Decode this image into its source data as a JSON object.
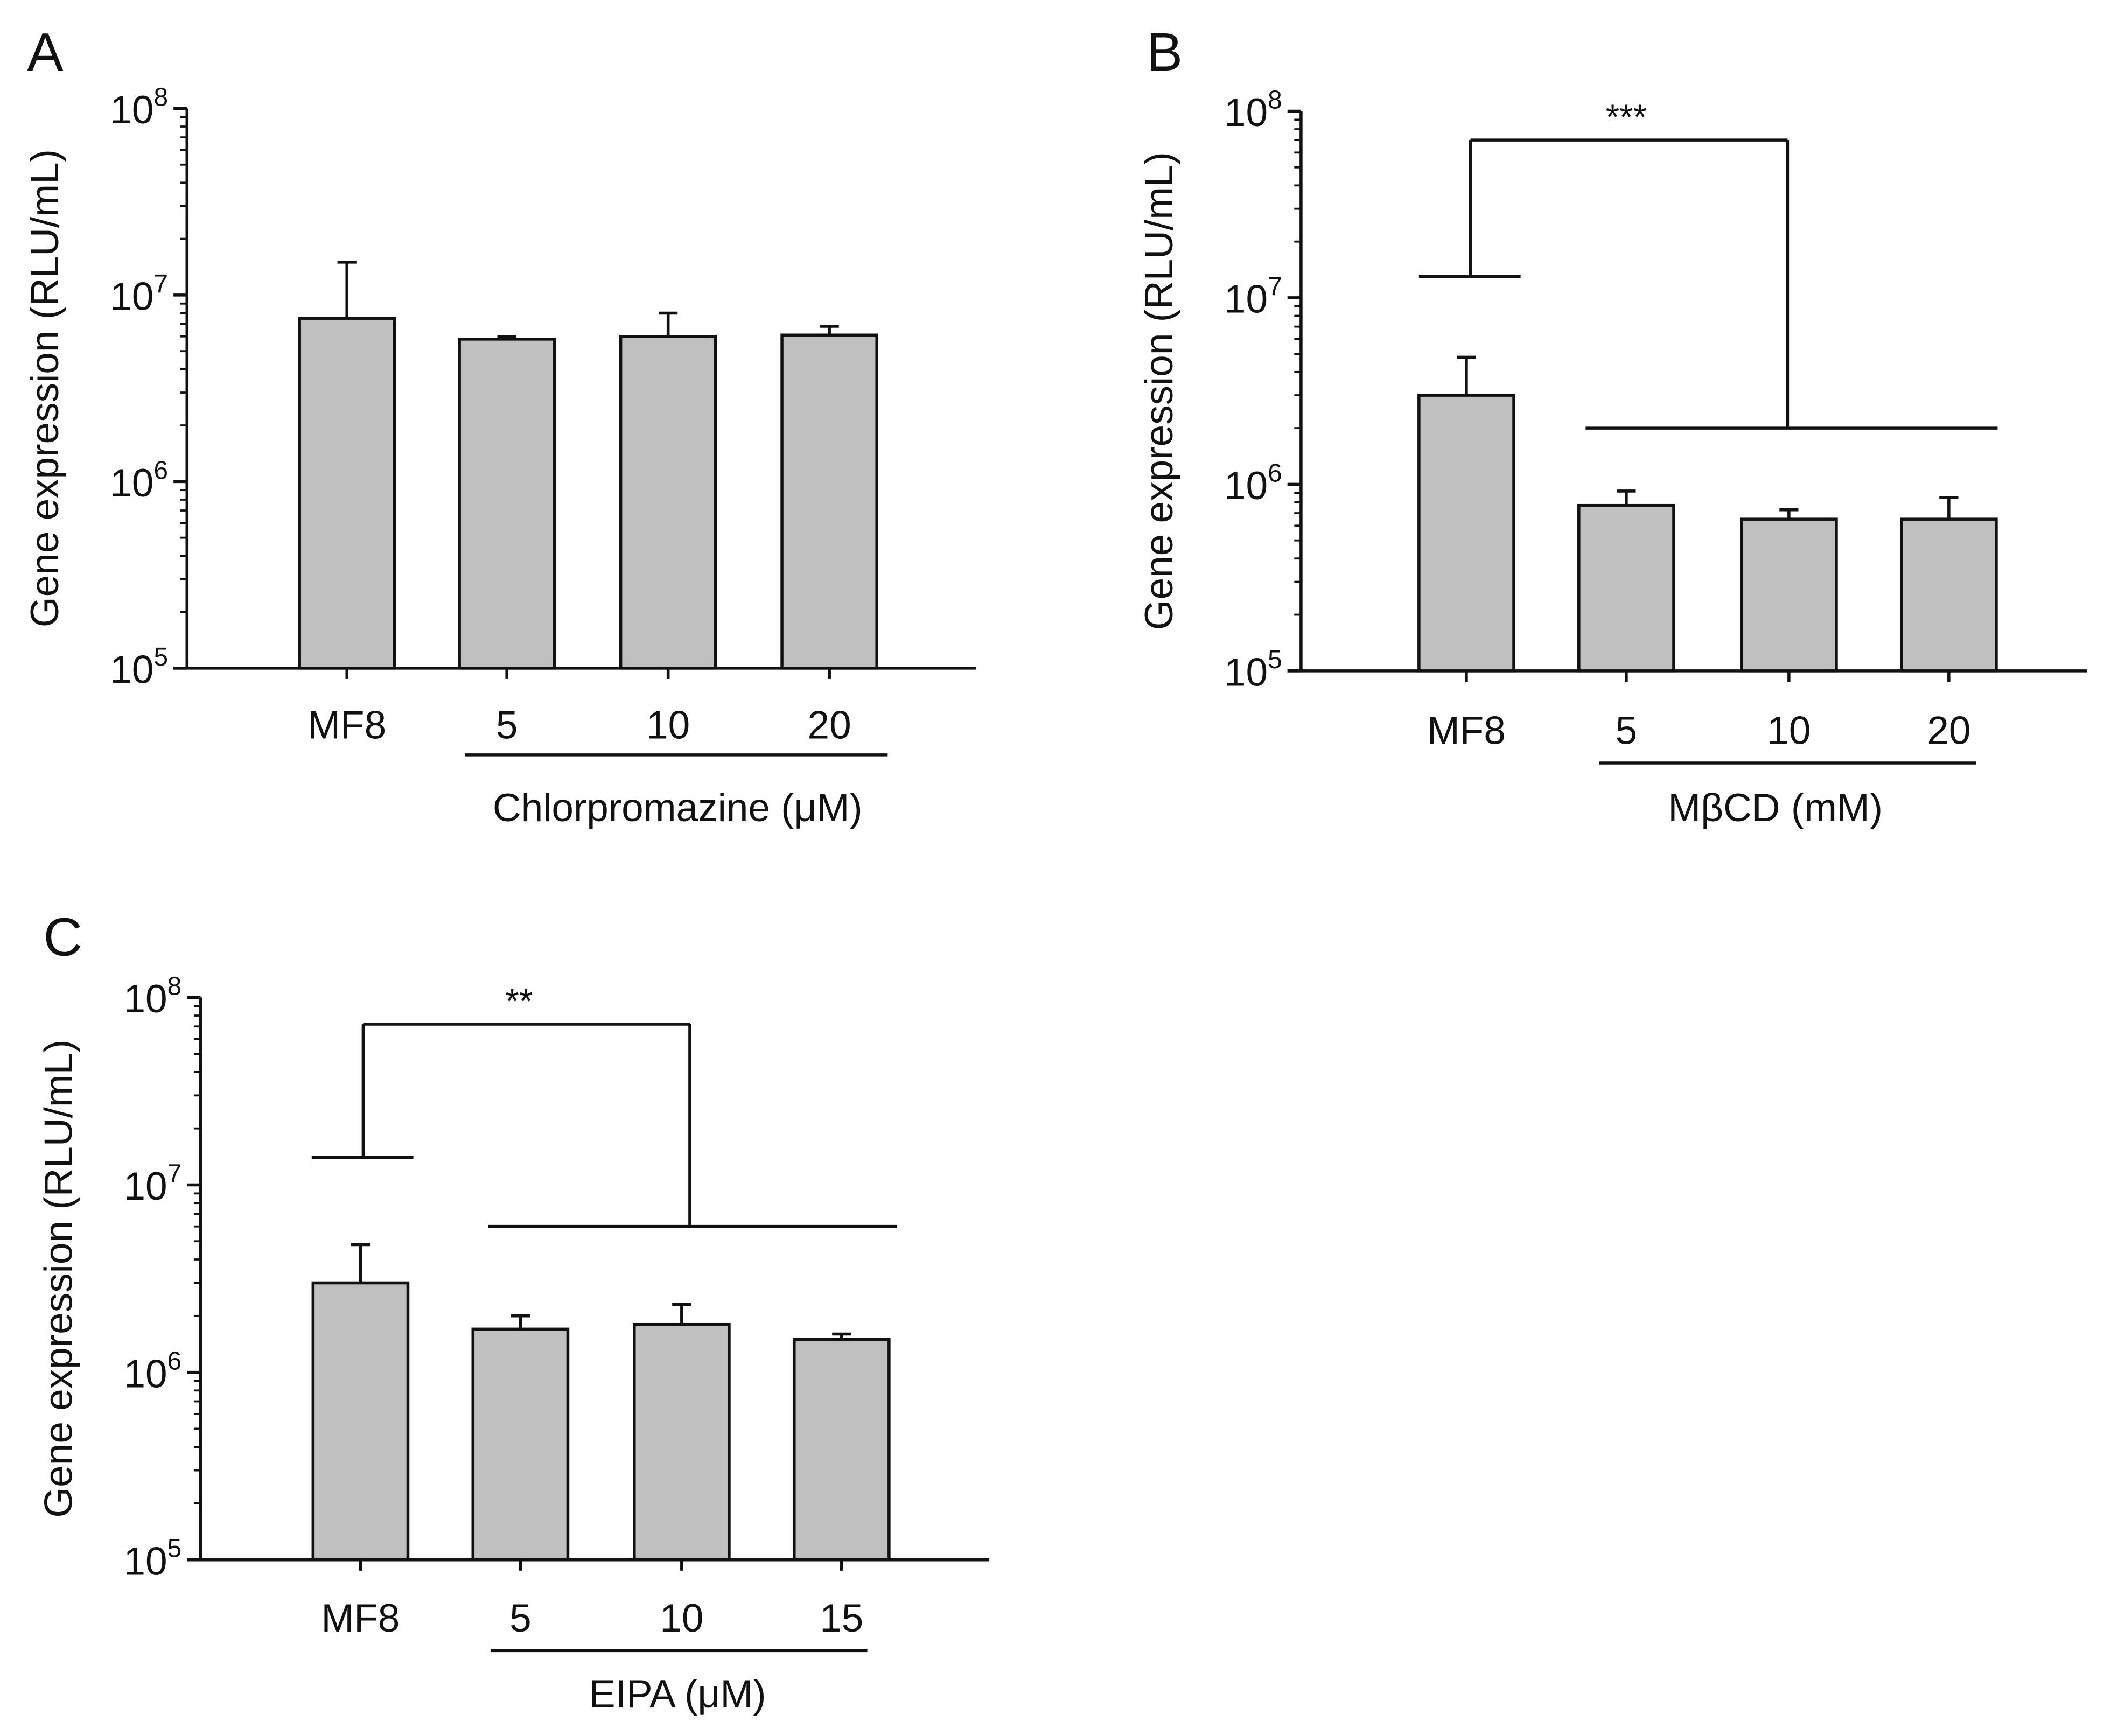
{
  "chart_data": [
    {
      "type": "bar",
      "panel": "A",
      "ylabel": "Gene expression (RLU/mL)",
      "yscale": "log",
      "ylim": [
        100000,
        100000000
      ],
      "yticks": [
        {
          "base": "10",
          "exp": "5"
        },
        {
          "base": "10",
          "exp": "6"
        },
        {
          "base": "10",
          "exp": "7"
        },
        {
          "base": "10",
          "exp": "8"
        }
      ],
      "categories": [
        "MF8",
        "5",
        "10",
        "20"
      ],
      "group_label": "Chlorpromazine (μM)",
      "values": [
        7500000,
        5800000,
        6000000,
        6100000
      ],
      "error_upper": [
        15000000,
        6000000,
        8000000,
        6800000
      ],
      "significance": null
    },
    {
      "type": "bar",
      "panel": "B",
      "ylabel": "Gene expression (RLU/mL)",
      "yscale": "log",
      "ylim": [
        100000,
        100000000
      ],
      "yticks": [
        {
          "base": "10",
          "exp": "5"
        },
        {
          "base": "10",
          "exp": "6"
        },
        {
          "base": "10",
          "exp": "7"
        },
        {
          "base": "10",
          "exp": "8"
        }
      ],
      "categories": [
        "MF8",
        "5",
        "10",
        "20"
      ],
      "group_label": "MβCD (mM)",
      "values": [
        3000000,
        770000,
        650000,
        650000
      ],
      "error_upper": [
        4800000,
        920000,
        730000,
        850000
      ],
      "significance": {
        "label": "***",
        "left_level": 13000000,
        "top_level": 70000000,
        "right_level": 2000000
      }
    },
    {
      "type": "bar",
      "panel": "C",
      "ylabel": "Gene expression (RLU/mL)",
      "yscale": "log",
      "ylim": [
        100000,
        100000000
      ],
      "yticks": [
        {
          "base": "10",
          "exp": "5"
        },
        {
          "base": "10",
          "exp": "6"
        },
        {
          "base": "10",
          "exp": "7"
        },
        {
          "base": "10",
          "exp": "8"
        }
      ],
      "categories": [
        "MF8",
        "5",
        "10",
        "15"
      ],
      "group_label": "EIPA (μM)",
      "values": [
        3000000,
        1700000,
        1800000,
        1500000
      ],
      "error_upper": [
        4800000,
        2000000,
        2300000,
        1600000
      ],
      "significance": {
        "label": "**",
        "left_level": 14000000,
        "top_level": 72000000,
        "right_level": 6000000
      }
    }
  ],
  "colors": {
    "bar_fill": "#c0c0c0",
    "stroke": "#111111"
  }
}
